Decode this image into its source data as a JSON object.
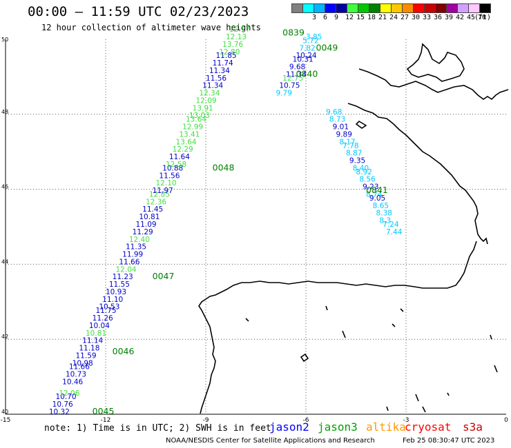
{
  "header": {
    "title": "00:00 – 11:59 UTC 02/23/2023",
    "subtitle": "12 hour collection of altimeter wave heights"
  },
  "legend": {
    "unit": "(ft)",
    "bins": [
      {
        "color": "#808080",
        "label": ""
      },
      {
        "color": "#00ffff",
        "label": "3"
      },
      {
        "color": "#00b4ff",
        "label": "6"
      },
      {
        "color": "#0000ff",
        "label": "9"
      },
      {
        "color": "#0000a0",
        "label": "12"
      },
      {
        "color": "#40ff40",
        "label": "15"
      },
      {
        "color": "#00c800",
        "label": "18"
      },
      {
        "color": "#008000",
        "label": "21"
      },
      {
        "color": "#ffff00",
        "label": "24"
      },
      {
        "color": "#ffc800",
        "label": "27"
      },
      {
        "color": "#ff8c00",
        "label": "30"
      },
      {
        "color": "#ff0000",
        "label": "33"
      },
      {
        "color": "#c80000",
        "label": "36"
      },
      {
        "color": "#800000",
        "label": "39"
      },
      {
        "color": "#a000a0",
        "label": "42"
      },
      {
        "color": "#d2a0ff",
        "label": "45"
      },
      {
        "color": "#ffc8ff",
        "label": "70"
      },
      {
        "color": "#000000",
        "label": ""
      }
    ]
  },
  "map": {
    "lon_ticks": [
      "-15",
      "-12",
      "-9",
      "-6",
      "-3",
      "0"
    ],
    "lat_ticks": [
      "50",
      "48",
      "46",
      "44",
      "42",
      "40"
    ],
    "lon_range": [
      -15,
      0
    ],
    "lat_range": [
      40,
      50
    ],
    "colors": {
      "jason2": "#0000c8",
      "jason3_light": "#40e040",
      "jason3_dark": "#008000",
      "altika": "#ff9900",
      "cryosat": "#ff0000",
      "s3a": "#cc0000",
      "cyan": "#00c8ff",
      "label": "#008000"
    }
  },
  "tracks": {
    "track1": [
      {
        "lon": -13.7,
        "lat": 40.0,
        "swh": "10.32",
        "sat": "jason2"
      },
      {
        "lon": -13.6,
        "lat": 40.2,
        "swh": "10.76",
        "sat": "jason2"
      },
      {
        "lon": -13.5,
        "lat": 40.4,
        "swh": "10.70",
        "sat": "jason2"
      },
      {
        "lon": -13.4,
        "lat": 40.5,
        "swh": "12.06",
        "sat": "jason3"
      },
      {
        "lon": -13.3,
        "lat": 40.8,
        "swh": "10.46",
        "sat": "jason2"
      },
      {
        "lon": -13.2,
        "lat": 41.0,
        "swh": "10.73",
        "sat": "jason2"
      },
      {
        "lon": -13.1,
        "lat": 41.2,
        "swh": "11.66",
        "sat": "jason2"
      },
      {
        "lon": -13.0,
        "lat": 41.3,
        "swh": "10.98",
        "sat": "jason2"
      },
      {
        "lon": -12.9,
        "lat": 41.5,
        "swh": "11.59",
        "sat": "jason2"
      },
      {
        "lon": -12.8,
        "lat": 41.7,
        "swh": "11.18",
        "sat": "jason2"
      },
      {
        "lon": -12.7,
        "lat": 41.9,
        "swh": "11.14",
        "sat": "jason2"
      },
      {
        "lon": -12.6,
        "lat": 42.1,
        "swh": "10.81",
        "sat": "jason3"
      },
      {
        "lon": -12.5,
        "lat": 42.3,
        "swh": "10.04",
        "sat": "jason2"
      },
      {
        "lon": -12.4,
        "lat": 42.5,
        "swh": "11.26",
        "sat": "jason2"
      },
      {
        "lon": -12.3,
        "lat": 42.7,
        "swh": "11.75",
        "sat": "jason2"
      },
      {
        "lon": -12.2,
        "lat": 42.8,
        "swh": "10.53",
        "sat": "jason2"
      },
      {
        "lon": -12.1,
        "lat": 43.0,
        "swh": "11.10",
        "sat": "jason2"
      },
      {
        "lon": -12.0,
        "lat": 43.2,
        "swh": "10.93",
        "sat": "jason2"
      },
      {
        "lon": -11.9,
        "lat": 43.4,
        "swh": "11.55",
        "sat": "jason2"
      },
      {
        "lon": -11.8,
        "lat": 43.6,
        "swh": "11.23",
        "sat": "jason2"
      },
      {
        "lon": -11.7,
        "lat": 43.8,
        "swh": "12.04",
        "sat": "jason3"
      },
      {
        "lon": -11.6,
        "lat": 44.0,
        "swh": "11.66",
        "sat": "jason2"
      },
      {
        "lon": -11.5,
        "lat": 44.2,
        "swh": "11.99",
        "sat": "jason2"
      },
      {
        "lon": -11.4,
        "lat": 44.4,
        "swh": "11.35",
        "sat": "jason2"
      },
      {
        "lon": -11.3,
        "lat": 44.6,
        "swh": "12.40",
        "sat": "jason3"
      },
      {
        "lon": -11.2,
        "lat": 44.8,
        "swh": "11.29",
        "sat": "jason2"
      },
      {
        "lon": -11.1,
        "lat": 45.0,
        "swh": "11.09",
        "sat": "jason2"
      },
      {
        "lon": -11.0,
        "lat": 45.2,
        "swh": "10.81",
        "sat": "jason2"
      },
      {
        "lon": -10.9,
        "lat": 45.4,
        "swh": "11.45",
        "sat": "jason2"
      },
      {
        "lon": -10.8,
        "lat": 45.6,
        "swh": "12.36",
        "sat": "jason3"
      },
      {
        "lon": -10.7,
        "lat": 45.8,
        "swh": "12.85",
        "sat": "jason3"
      },
      {
        "lon": -10.6,
        "lat": 45.9,
        "swh": "11.97",
        "sat": "jason2"
      },
      {
        "lon": -10.5,
        "lat": 46.1,
        "swh": "12.10",
        "sat": "jason3"
      },
      {
        "lon": -10.4,
        "lat": 46.3,
        "swh": "11.56",
        "sat": "jason2"
      },
      {
        "lon": -10.3,
        "lat": 46.5,
        "swh": "10.88",
        "sat": "jason2"
      },
      {
        "lon": -10.2,
        "lat": 46.6,
        "swh": "12.58",
        "sat": "jason3"
      },
      {
        "lon": -10.1,
        "lat": 46.8,
        "swh": "11.64",
        "sat": "jason2"
      },
      {
        "lon": -10.0,
        "lat": 47.0,
        "swh": "12.29",
        "sat": "jason3"
      },
      {
        "lon": -9.9,
        "lat": 47.2,
        "swh": "13.64",
        "sat": "jason3"
      },
      {
        "lon": -9.8,
        "lat": 47.4,
        "swh": "13.41",
        "sat": "jason3"
      },
      {
        "lon": -9.7,
        "lat": 47.6,
        "swh": "12.99",
        "sat": "jason3"
      },
      {
        "lon": -9.6,
        "lat": 47.8,
        "swh": "13.64",
        "sat": "jason3"
      },
      {
        "lon": -9.5,
        "lat": 47.9,
        "swh": "13.03",
        "sat": "jason3"
      },
      {
        "lon": -9.4,
        "lat": 48.1,
        "swh": "13.91",
        "sat": "jason3"
      },
      {
        "lon": -9.3,
        "lat": 48.3,
        "swh": "12.09",
        "sat": "jason3"
      },
      {
        "lon": -9.2,
        "lat": 48.5,
        "swh": "12.34",
        "sat": "jason3"
      },
      {
        "lon": -9.1,
        "lat": 48.7,
        "swh": "11.34",
        "sat": "jason2"
      },
      {
        "lon": -9.0,
        "lat": 48.9,
        "swh": "11.56",
        "sat": "jason2"
      },
      {
        "lon": -8.9,
        "lat": 49.1,
        "swh": "11.34",
        "sat": "jason2"
      },
      {
        "lon": -8.8,
        "lat": 49.3,
        "swh": "11.74",
        "sat": "jason2"
      },
      {
        "lon": -8.7,
        "lat": 49.5,
        "swh": "11.85",
        "sat": "jason2"
      },
      {
        "lon": -8.6,
        "lat": 49.6,
        "swh": "12.80",
        "sat": "jason3"
      },
      {
        "lon": -8.5,
        "lat": 49.8,
        "swh": "13.76",
        "sat": "jason3"
      },
      {
        "lon": -8.4,
        "lat": 50.0,
        "swh": "12.13",
        "sat": "jason3"
      },
      {
        "lon": -8.3,
        "lat": 50.2,
        "swh": "12.17",
        "sat": "jason3"
      }
    ],
    "track2": [
      {
        "lon": -6.0,
        "lat": 50.0,
        "swh": "3.85",
        "sat": "cyan"
      },
      {
        "lon": -6.1,
        "lat": 49.9,
        "swh": "5.72",
        "sat": "cyan"
      },
      {
        "lon": -6.2,
        "lat": 49.7,
        "swh": "7.82",
        "sat": "cyan"
      },
      {
        "lon": -6.3,
        "lat": 49.5,
        "swh": "10.24",
        "sat": "jason2"
      },
      {
        "lon": -6.4,
        "lat": 49.4,
        "swh": "10.31",
        "sat": "jason2"
      },
      {
        "lon": -6.5,
        "lat": 49.2,
        "swh": "9.68",
        "sat": "jason2"
      },
      {
        "lon": -6.6,
        "lat": 49.0,
        "swh": "11.34",
        "sat": "jason2"
      },
      {
        "lon": -6.7,
        "lat": 48.9,
        "swh": "12.75",
        "sat": "jason3"
      },
      {
        "lon": -6.8,
        "lat": 48.7,
        "swh": "10.75",
        "sat": "jason2"
      },
      {
        "lon": -6.9,
        "lat": 48.5,
        "swh": "9.79",
        "sat": "cyan"
      },
      {
        "lon": -5.4,
        "lat": 48.0,
        "swh": "9.68",
        "sat": "cyan"
      },
      {
        "lon": -5.3,
        "lat": 47.8,
        "swh": "8.73",
        "sat": "cyan"
      },
      {
        "lon": -5.2,
        "lat": 47.6,
        "swh": "9.01",
        "sat": "jason2"
      },
      {
        "lon": -5.1,
        "lat": 47.4,
        "swh": "9.89",
        "sat": "jason2"
      },
      {
        "lon": -5.0,
        "lat": 47.2,
        "swh": "8.17",
        "sat": "cyan"
      },
      {
        "lon": -4.9,
        "lat": 47.1,
        "swh": "7.78",
        "sat": "cyan"
      },
      {
        "lon": -4.8,
        "lat": 46.9,
        "swh": "8.87",
        "sat": "cyan"
      },
      {
        "lon": -4.7,
        "lat": 46.7,
        "swh": "9.35",
        "sat": "jason2"
      },
      {
        "lon": -4.6,
        "lat": 46.5,
        "swh": "8.40",
        "sat": "cyan"
      },
      {
        "lon": -4.5,
        "lat": 46.4,
        "swh": "8.92",
        "sat": "cyan"
      },
      {
        "lon": -4.4,
        "lat": 46.2,
        "swh": "8.56",
        "sat": "cyan"
      },
      {
        "lon": -4.3,
        "lat": 46.0,
        "swh": "9.23",
        "sat": "jason2"
      },
      {
        "lon": -4.2,
        "lat": 45.8,
        "swh": "8.74",
        "sat": "cyan"
      },
      {
        "lon": -4.1,
        "lat": 45.7,
        "swh": "9.05",
        "sat": "jason2"
      },
      {
        "lon": -4.0,
        "lat": 45.5,
        "swh": "8.65",
        "sat": "cyan"
      },
      {
        "lon": -3.9,
        "lat": 45.3,
        "swh": "8.38",
        "sat": "cyan"
      },
      {
        "lon": -3.8,
        "lat": 45.1,
        "swh": "8.3",
        "sat": "cyan"
      },
      {
        "lon": -3.7,
        "lat": 45.0,
        "swh": "7.24",
        "sat": "cyan"
      },
      {
        "lon": -3.6,
        "lat": 44.8,
        "swh": "7.44",
        "sat": "cyan"
      }
    ],
    "time_labels": [
      {
        "lon": -12.4,
        "lat": 40.0,
        "text": "0045"
      },
      {
        "lon": -11.8,
        "lat": 41.6,
        "text": "0046"
      },
      {
        "lon": -10.6,
        "lat": 43.6,
        "text": "0047"
      },
      {
        "lon": -8.8,
        "lat": 46.5,
        "text": "0048"
      },
      {
        "lon": -5.7,
        "lat": 49.7,
        "text": "0049"
      },
      {
        "lon": -6.7,
        "lat": 50.1,
        "text": "0839"
      },
      {
        "lon": -6.3,
        "lat": 49.0,
        "text": "0840"
      },
      {
        "lon": -4.2,
        "lat": 45.9,
        "text": "0841"
      }
    ]
  },
  "footer": {
    "note": "note:  1) Time is in UTC; 2) SWH is in feet",
    "satellites": [
      {
        "name": "jason2",
        "color": "#0000ff"
      },
      {
        "name": "jason3",
        "color": "#00a000"
      },
      {
        "name": "altika",
        "color": "#ff9900"
      },
      {
        "name": "cryosat",
        "color": "#ff0000"
      },
      {
        "name": "s3a",
        "color": "#cc0000"
      }
    ],
    "credit": "NOAA/NESDIS Center for Satellite Applications and Research",
    "date": "Feb 25 08:30:47 UTC 2023"
  }
}
